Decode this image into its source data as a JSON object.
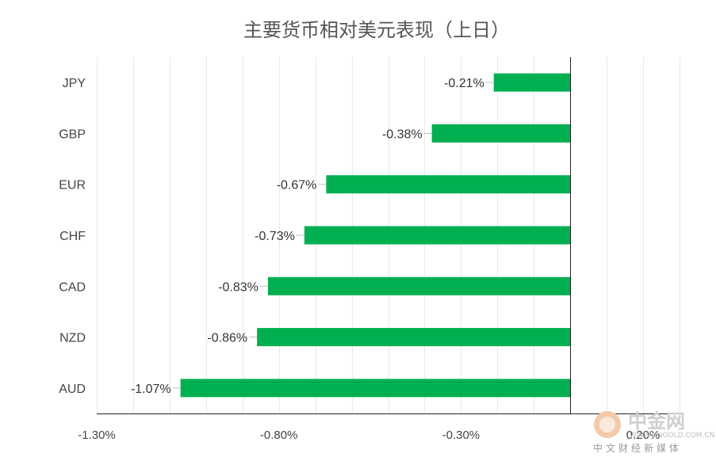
{
  "chart_data": {
    "type": "bar",
    "orientation": "horizontal",
    "title": "主要货币相对美元表现（上日）",
    "categories": [
      "JPY",
      "GBP",
      "EUR",
      "CHF",
      "CAD",
      "NZD",
      "AUD"
    ],
    "values": [
      -0.21,
      -0.38,
      -0.67,
      -0.73,
      -0.83,
      -0.86,
      -1.07
    ],
    "data_labels": [
      "-0.21%",
      "-0.38%",
      "-0.67%",
      "-0.73%",
      "-0.83%",
      "-0.86%",
      "-1.07%"
    ],
    "xlim": [
      -1.3,
      0.3
    ],
    "xticks": [
      -1.3,
      -0.8,
      -0.3,
      0.2
    ],
    "xtick_labels": [
      "-1.30%",
      "-0.80%",
      "-0.30%",
      "0.20%"
    ],
    "grid": true,
    "colors": {
      "bar": "#00b050"
    }
  },
  "watermark": {
    "name": "中金网",
    "sub": "中文财经新媒体",
    "url": "WWW.CNGOLD.COM.CN"
  }
}
